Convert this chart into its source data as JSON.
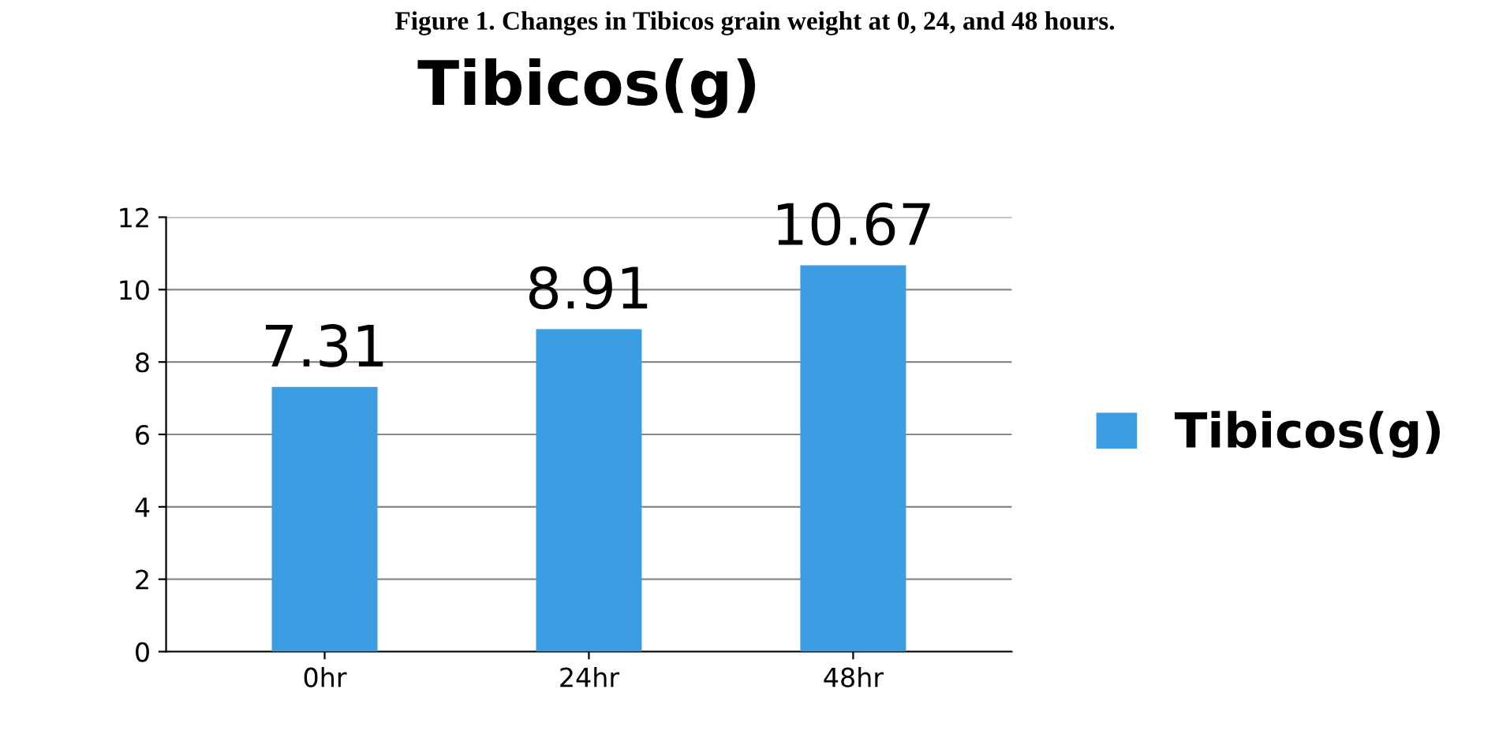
{
  "chart_data": {
    "type": "bar",
    "title": "Tibicos(g)",
    "annotations": [
      "Figure 1. Changes in Tibicos grain weight at 0, 24, and 48 hours."
    ],
    "categories": [
      "0hr",
      "24hr",
      "48hr"
    ],
    "series": [
      {
        "name": "Tibicos(g)",
        "color": "#3d9de2",
        "values": [
          7.31,
          8.91,
          10.67
        ]
      }
    ],
    "ylim": [
      0,
      12
    ],
    "yticks": [
      0,
      2,
      4,
      6,
      8,
      10,
      12
    ],
    "grid": "y",
    "legend": "right",
    "data_labels": true
  }
}
